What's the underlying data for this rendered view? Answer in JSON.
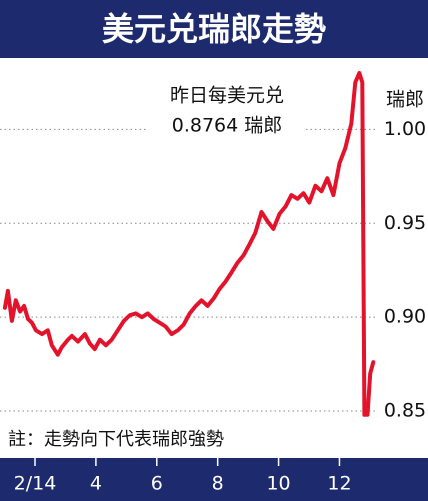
{
  "chart_data": {
    "type": "line",
    "title": "美元兑瑞郎走勢",
    "annotation": [
      "昨日每美元兑",
      "0.8764 瑞郎"
    ],
    "y_unit": "瑞郎",
    "note": "註：走勢向下代表瑞郎強勢",
    "x": [
      1.01,
      1.11,
      1.24,
      1.37,
      1.51,
      1.64,
      1.77,
      1.9,
      2.03,
      2.23,
      2.42,
      2.55,
      2.75,
      2.88,
      3.08,
      3.21,
      3.41,
      3.64,
      3.8,
      3.96,
      4.13,
      4.33,
      4.52,
      4.72,
      4.92,
      5.11,
      5.31,
      5.51,
      5.7,
      5.9,
      6.1,
      6.29,
      6.49,
      6.69,
      6.88,
      7.08,
      7.28,
      7.47,
      7.67,
      7.87,
      8.06,
      8.26,
      8.46,
      8.65,
      8.85,
      9.05,
      9.24,
      9.44,
      9.64,
      9.83,
      10.03,
      10.23,
      10.42,
      10.62,
      10.82,
      11.01,
      11.21,
      11.41,
      11.6,
      11.8,
      12.0,
      12.19,
      12.39,
      12.52,
      12.65,
      12.75,
      12.82,
      12.92,
      13.01,
      13.11
    ],
    "series": [
      {
        "color": "#e3132c",
        "values": [
          0.905,
          0.914,
          0.898,
          0.909,
          0.903,
          0.906,
          0.899,
          0.897,
          0.893,
          0.891,
          0.893,
          0.885,
          0.88,
          0.884,
          0.888,
          0.89,
          0.887,
          0.891,
          0.886,
          0.883,
          0.888,
          0.885,
          0.888,
          0.893,
          0.898,
          0.901,
          0.902,
          0.9,
          0.902,
          0.899,
          0.897,
          0.895,
          0.891,
          0.893,
          0.896,
          0.902,
          0.906,
          0.909,
          0.906,
          0.91,
          0.915,
          0.919,
          0.924,
          0.929,
          0.933,
          0.939,
          0.945,
          0.956,
          0.951,
          0.947,
          0.955,
          0.959,
          0.965,
          0.963,
          0.966,
          0.961,
          0.97,
          0.967,
          0.974,
          0.965,
          0.982,
          0.99,
          1.003,
          1.025,
          1.03,
          1.025,
          0.848,
          0.848,
          0.87,
          0.876
        ]
      }
    ],
    "xlim": [
      0.85,
      13.2
    ],
    "xticks": [
      {
        "value": 2,
        "label": "2/14"
      },
      4,
      6,
      8,
      10,
      12
    ],
    "ylim": [
      0.825,
      1.038
    ],
    "yticks": [
      {
        "value": 1,
        "label": "1.00"
      },
      0.95,
      {
        "value": 0.9,
        "label": "0.90"
      },
      0.85
    ],
    "grid": true
  }
}
